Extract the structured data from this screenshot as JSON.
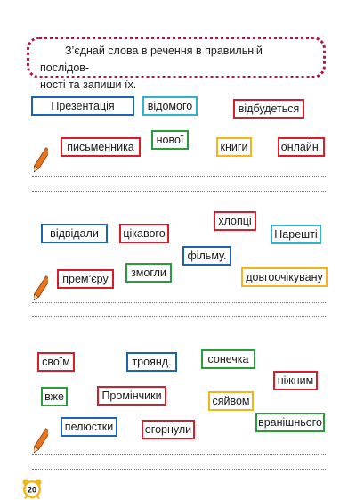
{
  "task": {
    "text": "З’єднай слова в речення в правильній послідовності та запиши їх.",
    "line1": "З’єднай слова в речення в правильній послідов-",
    "line2": "ності та запиши їх."
  },
  "colors": {
    "border": "#b0164b",
    "blue": "#1f63b5",
    "red": "#d61e2d",
    "green": "#2a9b3f",
    "yellow": "#f2b51c",
    "teal": "#2fb3c9"
  },
  "exercise1": {
    "words": [
      "Презентація",
      "відомого",
      "відбудеться",
      "нової",
      "письменника",
      "книги",
      "онлайн."
    ]
  },
  "exercise2": {
    "words": [
      "хлопці",
      "відвідали",
      "цікавого",
      "Нарешті",
      "фільму.",
      "змогли",
      "прем’єру",
      "довгоочікувану"
    ]
  },
  "exercise3": {
    "words": [
      "своїм",
      "троянд.",
      "сонечка",
      "ніжним",
      "вже",
      "Промінчики",
      "сяйвом",
      "пелюстки",
      "огорнули",
      "вранішнього"
    ]
  },
  "page_number": "20"
}
